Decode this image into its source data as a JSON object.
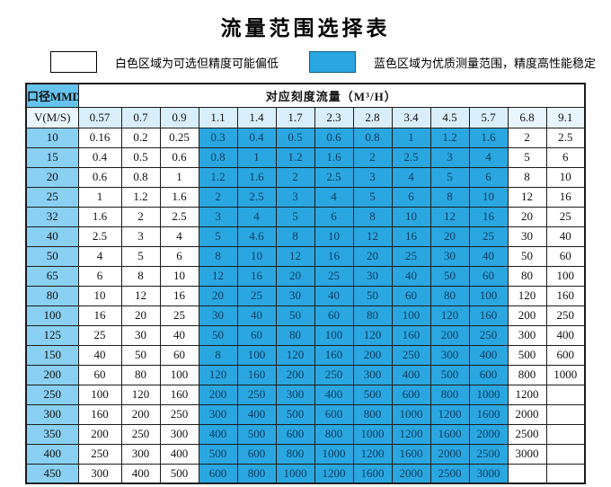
{
  "title": "流量范围选择表",
  "legend": {
    "white_label": "白色区域为可选但精度可能偏低",
    "blue_label": "蓝色区域为优质测量范围，精度高性能稳定"
  },
  "colors": {
    "bright_blue": "#2aa7e0",
    "dn_column_blue": "#8ad0f3",
    "corner_header_blue": "#65c3ee",
    "velocity_row_pale_blue": "#d9eefb",
    "velocity_row_paler_blue": "#e9f5fd",
    "band_text": "#0f3a5d",
    "border": "#1c1c1c"
  },
  "table": {
    "corner_header": "口径MMDN",
    "span_header": "对应刻度流量（M³/H）",
    "velocity_label": "V(M/S)",
    "velocity_values": [
      "0.57",
      "0.7",
      "0.9",
      "1.1",
      "1.4",
      "1.7",
      "2.3",
      "2.8",
      "3.4",
      "4.5",
      "5.7",
      "6.8",
      "9.1"
    ],
    "blue_band_start_index": 3,
    "blue_band_end_index": 10,
    "rows": [
      {
        "dn": "10",
        "values": [
          "0.16",
          "0.2",
          "0.25",
          "0.3",
          "0.4",
          "0.5",
          "0.6",
          "0.8",
          "1",
          "1.2",
          "1.6",
          "2",
          "2.5"
        ]
      },
      {
        "dn": "15",
        "values": [
          "0.4",
          "0.5",
          "0.6",
          "0.8",
          "1",
          "1.2",
          "1.6",
          "2",
          "2.5",
          "3",
          "4",
          "5",
          "6"
        ]
      },
      {
        "dn": "20",
        "values": [
          "0.6",
          "0.8",
          "1",
          "1.2",
          "1.6",
          "2",
          "2.5",
          "3",
          "4",
          "5",
          "6",
          "8",
          "10"
        ]
      },
      {
        "dn": "25",
        "values": [
          "1",
          "1.2",
          "1.6",
          "2",
          "2.5",
          "3",
          "4",
          "5",
          "6",
          "8",
          "10",
          "12",
          "16"
        ]
      },
      {
        "dn": "32",
        "values": [
          "1.6",
          "2",
          "2.5",
          "3",
          "4",
          "5",
          "6",
          "8",
          "10",
          "12",
          "16",
          "20",
          "25"
        ]
      },
      {
        "dn": "40",
        "values": [
          "2.5",
          "3",
          "4",
          "5",
          "4.6",
          "8",
          "10",
          "12",
          "16",
          "20",
          "25",
          "30",
          "40"
        ]
      },
      {
        "dn": "50",
        "values": [
          "4",
          "5",
          "6",
          "8",
          "10",
          "12",
          "16",
          "20",
          "25",
          "30",
          "40",
          "50",
          "60"
        ]
      },
      {
        "dn": "65",
        "values": [
          "6",
          "8",
          "10",
          "12",
          "16",
          "20",
          "25",
          "30",
          "40",
          "50",
          "60",
          "80",
          "100"
        ]
      },
      {
        "dn": "80",
        "values": [
          "10",
          "12",
          "16",
          "20",
          "25",
          "30",
          "40",
          "50",
          "60",
          "80",
          "100",
          "120",
          "160"
        ]
      },
      {
        "dn": "100",
        "values": [
          "16",
          "20",
          "25",
          "30",
          "40",
          "50",
          "60",
          "80",
          "100",
          "120",
          "160",
          "200",
          "250"
        ]
      },
      {
        "dn": "125",
        "values": [
          "25",
          "30",
          "40",
          "50",
          "60",
          "80",
          "100",
          "120",
          "160",
          "200",
          "250",
          "300",
          "400"
        ]
      },
      {
        "dn": "150",
        "values": [
          "40",
          "50",
          "60",
          "8",
          "100",
          "120",
          "160",
          "200",
          "250",
          "300",
          "400",
          "500",
          "600"
        ]
      },
      {
        "dn": "200",
        "values": [
          "60",
          "80",
          "100",
          "120",
          "160",
          "200",
          "250",
          "300",
          "400",
          "500",
          "600",
          "800",
          "1000"
        ]
      },
      {
        "dn": "250",
        "values": [
          "100",
          "120",
          "160",
          "200",
          "250",
          "300",
          "400",
          "500",
          "600",
          "800",
          "1000",
          "1200",
          ""
        ]
      },
      {
        "dn": "300",
        "values": [
          "160",
          "200",
          "250",
          "300",
          "400",
          "500",
          "600",
          "800",
          "1000",
          "1200",
          "1600",
          "2000",
          ""
        ]
      },
      {
        "dn": "350",
        "values": [
          "200",
          "250",
          "300",
          "400",
          "500",
          "600",
          "800",
          "1000",
          "1200",
          "1600",
          "2000",
          "2500",
          ""
        ]
      },
      {
        "dn": "400",
        "values": [
          "250",
          "300",
          "400",
          "500",
          "600",
          "800",
          "1000",
          "1200",
          "1600",
          "2000",
          "2500",
          "3000",
          ""
        ]
      },
      {
        "dn": "450",
        "values": [
          "300",
          "400",
          "500",
          "600",
          "800",
          "1000",
          "1200",
          "1600",
          "2000",
          "2500",
          "3000",
          "",
          ""
        ]
      }
    ]
  }
}
